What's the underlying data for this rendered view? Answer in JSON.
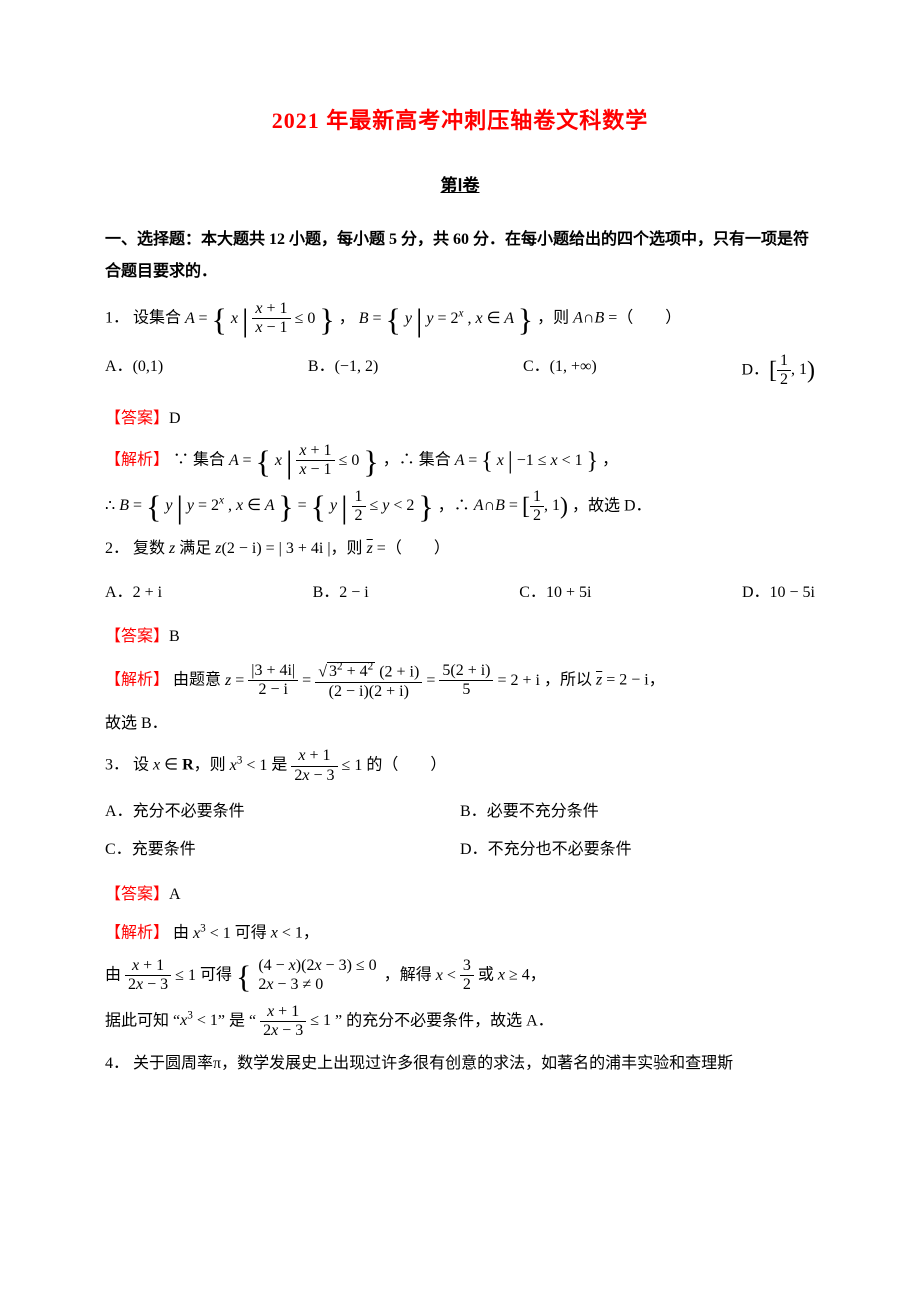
{
  "title": "2021 年最新高考冲刺压轴卷文科数学",
  "subtitle": "第Ⅰ卷",
  "section_head_1": "一、选择题：本大题共 12 小题，每小题 5 分，共 60 分．在每小题给出的四个选项中，只有一项是符合题目要求的．",
  "labels": {
    "answer": "【答案】",
    "explain": "【解析】"
  },
  "colors": {
    "accent": "#ff0000",
    "text": "#000000",
    "background": "#ffffff"
  },
  "q1": {
    "num": "1．",
    "stem_prefix": "设集合 ",
    "A_def": "A = { x | (x+1)/(x-1) ≤ 0 }",
    "B_pre": "，",
    "B_def": "B = { y | y = 2^x , x ∈ A }",
    "stem_suffix": "，则 A∩B =（　　）",
    "opt": {
      "A": "(0,1)",
      "B": "(-1,2)",
      "C": "(1,+∞)",
      "D": "[1/2, 1)"
    },
    "answer": "D",
    "expl_1": "∵ 集合 A = { x | (x+1)/(x-1) ≤ 0 }，∴ 集合 A = { x | -1 ≤ x < 1 }，",
    "expl_2": "∴ B = { y | y = 2^x , x ∈ A } = { y | 1/2 ≤ y < 2 }，∴ A∩B = [1/2, 1)，故选 D．"
  },
  "q2": {
    "num": "2．",
    "stem": "复数 z 满足 z(2−i) = |3+4i|，则 z̄ =（　　）",
    "opt": {
      "A": "2+i",
      "B": "2−i",
      "C": "10+5i",
      "D": "10−5i"
    },
    "answer": "B",
    "expl": "由题意 z = |3+4i| / (2−i) = √(3²+4²)(2+i) / ((2−i)(2+i)) = 5(2+i)/5 = 2+i，所以 z̄ = 2−i，",
    "expl_tail": "故选 B．"
  },
  "q3": {
    "num": "3．",
    "stem": "设 x ∈ R，则 x³ < 1 是 (x+1)/(2x−3) ≤ 1 的（　　）",
    "opt": {
      "A": "充分不必要条件",
      "B": "必要不充分条件",
      "C": "充要条件",
      "D": "不充分也不必要条件"
    },
    "answer": "A",
    "expl_1": "由 x³ < 1 可得 x < 1，",
    "expl_2": "由 (x+1)/(2x−3) ≤ 1 可得 { (4−x)(2x−3) ≤ 0, 2x−3 ≠ 0 }，解得 x < 3/2 或 x ≥ 4，",
    "expl_3": "据此可知 “x³ < 1” 是 “(x+1)/(2x−3) ≤ 1” 的充分不必要条件，故选 A．"
  },
  "q4": {
    "num": "4．",
    "stem": "关于圆周率π，数学发展史上出现过许多很有创意的求法，如著名的浦丰实验和查理斯"
  }
}
